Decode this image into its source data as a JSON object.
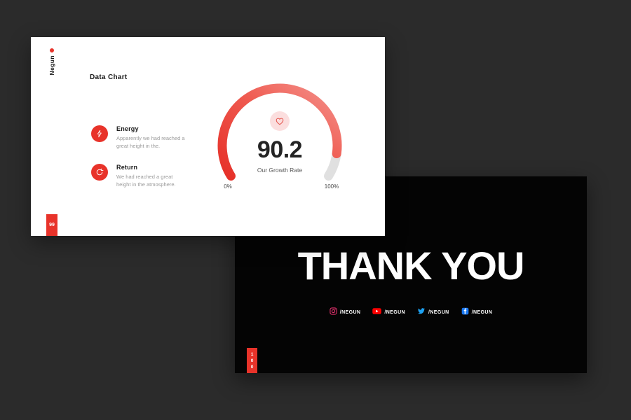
{
  "canvas": {
    "background": "#2b2b2b"
  },
  "accent_color": "#e8332a",
  "slide_chart": {
    "brand": "Negun",
    "title": "Data Chart",
    "page_number": "99",
    "features": [
      {
        "icon": "lightning-icon",
        "title": "Energy",
        "description": "Apparently we had reached a great height in the."
      },
      {
        "icon": "refresh-icon",
        "title": "Return",
        "description": "We had reached a great height in the atmosphere."
      }
    ]
  },
  "chart_data": {
    "type": "gauge",
    "value": 90.2,
    "min": 0,
    "max": 100,
    "title": "Our Growth Rate",
    "tick_labels": [
      "0%",
      "100%"
    ],
    "start_angle_deg": 212,
    "end_angle_deg": -32,
    "track_color": "#e0e0e0",
    "fill_gradient": [
      "#e63028",
      "#ef5a50",
      "#f4928c"
    ],
    "center_icon": "heart-icon"
  },
  "slide_thanks": {
    "title": "THANK YOU",
    "page_number": "100",
    "socials": [
      {
        "icon": "instagram-icon",
        "label": "/NEGUN",
        "color": "#e1306c"
      },
      {
        "icon": "youtube-icon",
        "label": "/NEGUN",
        "color": "#ff0000"
      },
      {
        "icon": "twitter-icon",
        "label": "/NEGUN",
        "color": "#1da1f2"
      },
      {
        "icon": "facebook-icon",
        "label": "/NEGUN",
        "color": "#1877f2"
      }
    ]
  }
}
